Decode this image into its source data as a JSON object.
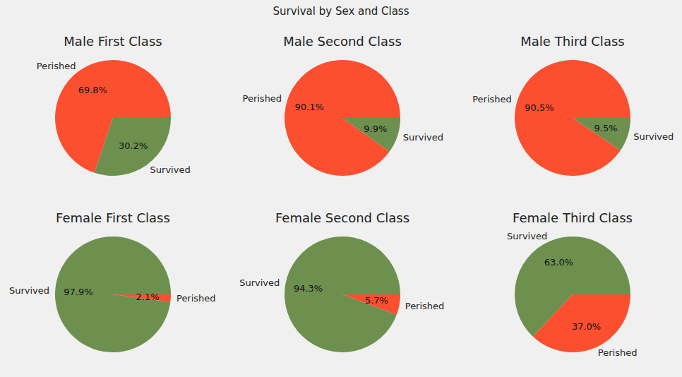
{
  "title": "Survival by Sex and Class",
  "chart_data": [
    {
      "type": "pie",
      "title": "Male First Class",
      "categories": [
        "Perished",
        "Survived"
      ],
      "values": [
        69.8,
        30.2
      ],
      "value_labels": [
        "69.8%",
        "30.2%"
      ],
      "colors": [
        "#fc4f30",
        "#6d904f"
      ],
      "data_labels": true
    },
    {
      "type": "pie",
      "title": "Male Second Class",
      "categories": [
        "Perished",
        "Survived"
      ],
      "values": [
        90.1,
        9.9
      ],
      "value_labels": [
        "90.1%",
        "9.9%"
      ],
      "colors": [
        "#fc4f30",
        "#6d904f"
      ],
      "data_labels": true
    },
    {
      "type": "pie",
      "title": "Male Third Class",
      "categories": [
        "Perished",
        "Survived"
      ],
      "values": [
        90.5,
        9.5
      ],
      "value_labels": [
        "90.5%",
        "9.5%"
      ],
      "colors": [
        "#fc4f30",
        "#6d904f"
      ],
      "data_labels": true
    },
    {
      "type": "pie",
      "title": "Female First Class",
      "categories": [
        "Survived",
        "Perished"
      ],
      "values": [
        97.9,
        2.1
      ],
      "value_labels": [
        "97.9%",
        "2.1%"
      ],
      "colors": [
        "#6d904f",
        "#fc4f30"
      ],
      "data_labels": true
    },
    {
      "type": "pie",
      "title": "Female Second Class",
      "categories": [
        "Survived",
        "Perished"
      ],
      "values": [
        94.3,
        5.7
      ],
      "value_labels": [
        "94.3%",
        "5.7%"
      ],
      "colors": [
        "#6d904f",
        "#fc4f30"
      ],
      "data_labels": true
    },
    {
      "type": "pie",
      "title": "Female Third Class",
      "categories": [
        "Survived",
        "Perished"
      ],
      "values": [
        63.0,
        37.0
      ],
      "value_labels": [
        "63.0%",
        "37.0%"
      ],
      "colors": [
        "#6d904f",
        "#fc4f30"
      ],
      "data_labels": true
    }
  ]
}
